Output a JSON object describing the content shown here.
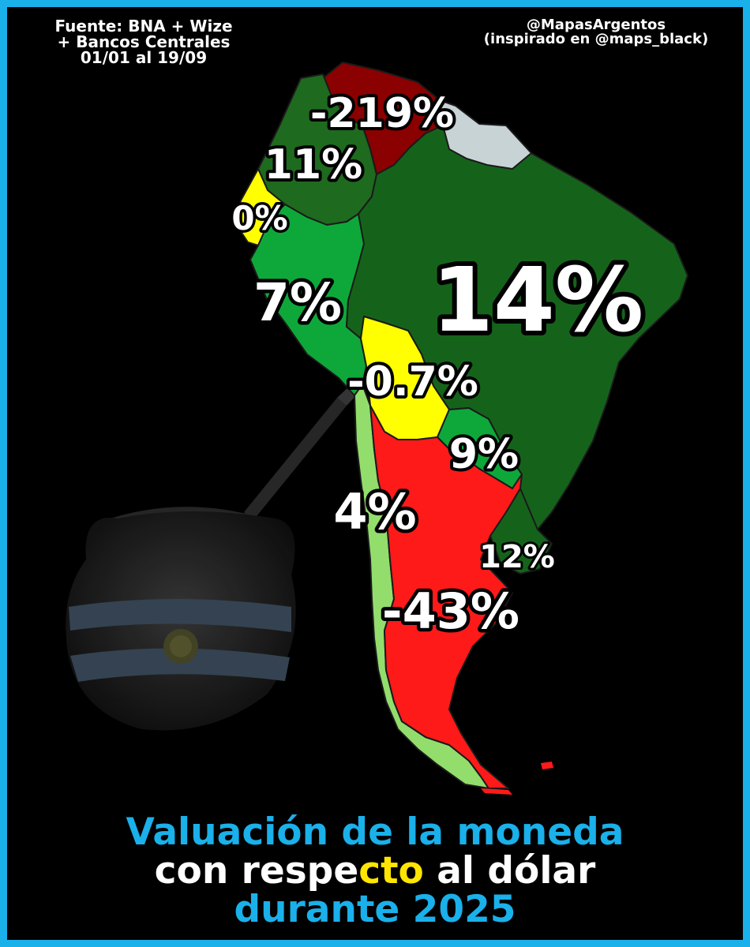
{
  "header": {
    "source_lines": [
      "Fuente: BNA + Wize",
      "+ Bancos Centrales",
      "01/01 al 19/09"
    ],
    "author_lines": [
      "@MapasArgentos",
      "(inspirado en @maps_black)"
    ]
  },
  "title": {
    "line1": "Valuación de la moneda",
    "line2_a": "con respe",
    "line2_b": "cto",
    "line2_c": " al dólar",
    "line3": "durante 2025"
  },
  "colors": {
    "border": "#1ab0ea",
    "title_blue": "#1ab0ea",
    "title_white": "#ffffff",
    "title_yellow": "#ffe600"
  },
  "map": {
    "regions": [
      {
        "id": "venezuela",
        "label": "-219%",
        "color": "#8b0000"
      },
      {
        "id": "colombia",
        "label": "11%",
        "color": "#1e6a1e"
      },
      {
        "id": "ecuador",
        "label": "0%",
        "color": "#ffff00"
      },
      {
        "id": "peru",
        "label": "7%",
        "color": "#0ea83a"
      },
      {
        "id": "brazil",
        "label": "14%",
        "color": "#15631a"
      },
      {
        "id": "bolivia",
        "label": "-0.7%",
        "color": "#ffff00"
      },
      {
        "id": "paraguay",
        "label": "9%",
        "color": "#0ea83a"
      },
      {
        "id": "chile",
        "label": "4%",
        "color": "#93dd6c"
      },
      {
        "id": "uruguay",
        "label": "12%",
        "color": "#15631a"
      },
      {
        "id": "argentina",
        "label": "-43%",
        "color": "#ff1a1a"
      },
      {
        "id": "guianas",
        "label": "",
        "color": "#c8d3d6"
      }
    ]
  }
}
